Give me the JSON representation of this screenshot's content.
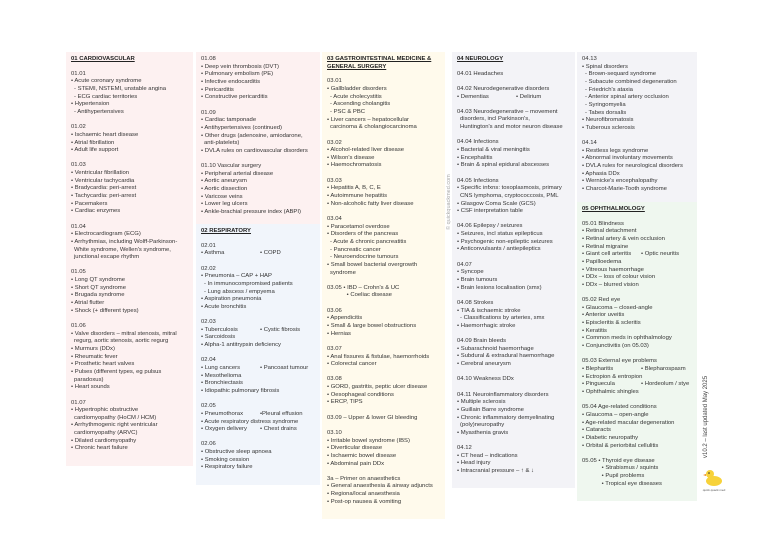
{
  "colors": {
    "cardio": "#fdf1f1",
    "resp": "#f1f5fb",
    "gastro": "#fffaec",
    "neuro": "#f3f3f7",
    "ophth": "#eff7ef"
  },
  "boxes": [
    {
      "id": "cardio",
      "heading": "01 CARDIOVASCULAR",
      "groups": [
        {
          "lines": [
            "01.01",
            "• Acute coronary syndrome",
            "- STEMI, NSTEMI, unstable angina",
            "- ECG cardiac territories",
            "• Hypertension",
            "- Antihypertensives"
          ]
        },
        {
          "lines": [
            "01.02",
            "• Ischaemic heart disease",
            "• Atrial fibrillation",
            "• Adult life support"
          ]
        },
        {
          "lines": [
            "01.03",
            "• Ventricular fibrillation",
            "• Ventricular tachycardia",
            "• Bradycardia: peri-arrest",
            "• Tachycardia: peri-arrest",
            "• Pacemakers",
            "• Cardiac enzymes"
          ]
        },
        {
          "lines": [
            "01.04",
            "• Electrocardiogram (ECG)",
            "• Arrhythmias, including Wolff-Parkinson-",
            "~White syndrome, Wellen's syndrome,",
            "~junctional escape rhythm"
          ]
        },
        {
          "lines": [
            "01.05",
            "• Long QT syndrome",
            "• Short QT syndrome",
            "• Brugada syndrome",
            "• Atrial flutter",
            "• Shock (+ different types)"
          ]
        },
        {
          "lines": [
            "01.06",
            "• Valve disorders – mitral stenosis, mitral",
            "~regurg, aortic stenosis, aortic regurg",
            "• Murmurs (DDx)",
            "• Rheumatic fever",
            "• Prosthetic heart valves",
            "• Pulses (different types, eg pulsus",
            "~paradoxus)",
            "• Heart sounds"
          ]
        },
        {
          "lines": [
            "01.07",
            "• Hypertrophic obstructive",
            "~cardiomyopathy (HoCM / HCM)",
            "• Arrhythmogenic right ventricular",
            "~cardiomyopathy (ARVC)",
            "• Dilated cardiomyopathy",
            "• Chronic heart failure"
          ]
        }
      ]
    },
    {
      "id": "cardio2",
      "heading": "",
      "groups": [
        {
          "lines": [
            "01.08",
            "• Deep vein thrombosis (DVT)",
            "• Pulmonary embolism (PE)",
            "• Infective endocarditis",
            "• Pericarditis",
            "• Constructive pericarditis"
          ]
        },
        {
          "lines": [
            "01.09",
            "• Cardiac tamponade",
            "• Antihypertensives (continued)",
            "• Other drugs (adenosine, amiodarone,",
            "~anti-platelets)",
            "• DVLA rules on cardiovascular disorders"
          ]
        },
        {
          "lines": [
            "01.10 Vascular surgery",
            "• Peripheral arterial disease",
            "• Aortic aneurysm",
            "• Aortic dissection",
            "• Varicose veins",
            "• Lower leg ulcers",
            "• Ankle-brachial pressure index (ABPI)"
          ]
        }
      ]
    },
    {
      "id": "resp",
      "heading": "02 RESPIRATORY",
      "groups": [
        {
          "lines": [
            "02.01",
            [
              "• Asthma",
              "• COPD"
            ]
          ]
        },
        {
          "lines": [
            "02.02",
            "• Pneumonia – CAP + HAP",
            "- In immunocompromised patients",
            "- Lung abscess / empyema",
            "• Aspiration pneumonia",
            "• Acute bronchitis"
          ]
        },
        {
          "lines": [
            "02.03",
            [
              "• Tuberculosis",
              "• Cystic fibrosis"
            ],
            "• Sarcoidosis",
            "• Alpha-1 antitrypsin deficiency"
          ]
        },
        {
          "lines": [
            "02.04",
            [
              "• Lung cancers",
              "• Pancoast tumour"
            ],
            "• Mesothelioma",
            "• Bronchiectasis",
            "• Idiopathic pulmonary fibrosis"
          ]
        },
        {
          "lines": [
            "02.05",
            [
              "• Pneumothorax",
              "•Pleural effusion"
            ],
            "• Acute respiratory distress syndrome",
            [
              "• Oxygen delivery",
              "• Chest drains"
            ]
          ]
        },
        {
          "lines": [
            "02.06",
            "• Obstructive sleep apnoea",
            "• Smoking cession",
            "• Respiratory failure"
          ]
        }
      ]
    },
    {
      "id": "gastro",
      "heading": "03 GASTROINTESTINAL MEDICINE & GENERAL SURGERY",
      "groups": [
        {
          "lines": [
            "03.01",
            "• Gallbladder disorders",
            "- Acute cholecystitis",
            "- Ascending cholangitis",
            "- PSC & PBC",
            "• Liver cancers – hepatocellular",
            "~carcinoma & cholangiocarcinoma"
          ]
        },
        {
          "lines": [
            "03.02",
            "• Alcohol-related liver disease",
            "• Wilson's disease",
            "• Haemochromatosis"
          ]
        },
        {
          "lines": [
            "03.03",
            "• Hepatitis A, B, C, E",
            "• Autoimmune hepatitis",
            "• Non-alcoholic fatty liver disease"
          ]
        },
        {
          "lines": [
            "03.04",
            "• Paracetamol overdose",
            "• Disorders of the pancreas",
            "- Acute & chronic pancreatitis",
            "- Pancreatic cancer",
            "- Neuroendocrine tumours",
            "• Small bowel bacterial overgrowth",
            "~syndrome"
          ]
        },
        {
          "lines": [
            "03.05 • IBD – Crohn's & UC",
            "            • Coeliac disease"
          ]
        },
        {
          "lines": [
            "03.06",
            "• Appendicitis",
            "• Small & large bowel obstructions",
            "• Hernias"
          ]
        },
        {
          "lines": [
            "03.07",
            "• Anal fissures & fistulae, haemorrhoids",
            "• Colorectal cancer"
          ]
        },
        {
          "lines": [
            "03.08",
            "• GORD, gastritis, peptic ulcer disease",
            "• Oesophageal conditions",
            "• ERCP, TIPS"
          ]
        },
        {
          "lines": [
            "03.09 – Upper & lower GI bleeding"
          ]
        },
        {
          "lines": [
            "03.10",
            "• Irritable bowel syndrome (IBS)",
            "• Diverticular disease",
            "• Ischaemic bowel disease",
            "• Abdominal pain DDx"
          ]
        },
        {
          "lines": [
            "3a – Primer on anaesthetics",
            "• General anaesthesia & airway adjuncts",
            "• Regiona/local anaesthesia",
            "• Post-op nausea & vomiting"
          ]
        }
      ]
    },
    {
      "id": "neuro",
      "heading": "04 NEUROLOGY",
      "groups": [
        {
          "lines": [
            "04.01 Headaches"
          ]
        },
        {
          "lines": [
            "04.02 Neurodegenerative disorders",
            [
              "• Dementias",
              "• Delirium"
            ]
          ]
        },
        {
          "lines": [
            "04.03 Neurodegenerative – movement",
            "~disorders, incl Parkinson's,",
            "~Huntington's and motor neuron disease"
          ]
        },
        {
          "lines": [
            "04.04 Infections",
            "• Bacterial & viral meningitis",
            "• Encephalitis",
            "• Brain & spinal epidural abscesses"
          ]
        },
        {
          "lines": [
            "04.05 Infections",
            "• Specific infxns: toxoplasmosis, primary",
            "~CNS lymphoma, cryptococcosis, PML",
            "• Glasgow Coma Scale (GCS)",
            "• CSF interpretation table"
          ]
        },
        {
          "lines": [
            "04.06 Epilepsy / seizures",
            "• Seizures, incl status epilepticus",
            "• Psychogenic non-epileptic seizures",
            "• Anticonvulsants / antiepileptics"
          ]
        },
        {
          "lines": [
            "04.07",
            "• Syncope",
            "• Brain tumours",
            "• Brain lesions localisation (smx)"
          ]
        },
        {
          "lines": [
            "04.08 Strokes",
            "• TIA & ischaemic stroke",
            "- Classifications by arteries, smx",
            "• Haemorrhagic stroke"
          ]
        },
        {
          "lines": [
            "04.09 Brain bleeds",
            "• Subarachnoid haemorrhage",
            "• Subdural & extradural haemorrhage",
            "• Cerebral aneurysm"
          ]
        },
        {
          "lines": [
            "04.10 Weakness DDx"
          ]
        },
        {
          "lines": [
            "04.11 Neuroinflammatory disorders",
            "• Multiple sclerosis",
            "• Guillain Barre syndrome",
            "• Chronic inflammatory demyelinating",
            "~(poly)neuropathy",
            "• Myasthenia gravis"
          ]
        },
        {
          "lines": [
            "04.12",
            "• CT head – indications",
            "• Head injury",
            "• Intracranial pressure – ↑ & ↓"
          ]
        }
      ]
    },
    {
      "id": "neuro2",
      "heading": "",
      "groups": [
        {
          "lines": [
            "04.13",
            "• Spinal disorders",
            "- Brown-sequard syndrome",
            "- Subacute combined degeneration",
            "- Friedrich's ataxia",
            "- Anterior spinal artery occlusion",
            "- Syringomyelia",
            "- Tabes dorsalis",
            "• Neurofibromatosis",
            "• Tuberous sclerosis"
          ]
        },
        {
          "lines": [
            "04.14",
            "• Restless legs syndrome",
            "• Abnormal involuntary movements",
            "• DVLA rules for neurological disorders",
            "• Aphasia DDx",
            "• Wernicke's encephalopathy",
            "• Charcot-Marie-Tooth syndrome"
          ]
        }
      ]
    },
    {
      "id": "ophth",
      "heading": "05 OPHTHALMOLOGY",
      "groups": [
        {
          "lines": [
            "05.01 Blindness",
            "• Retinal detachment",
            "• Retinal artery & vein occlusion",
            "• Retinal migraine",
            [
              "• Giant cell arteritis",
              "• Optic neuritis"
            ],
            "• Papilloedema",
            "• Vitreous haemorrhage",
            "• DDx – loss of colour vision",
            "• DDx – blurred vision"
          ]
        },
        {
          "lines": [
            "05.02 Red eye",
            "• Glaucoma – closed-angle",
            "• Anterior uveitis",
            "• Episcleritis & scleritis",
            "• Keratitis",
            "• Common meds in ophthalmology",
            "• Conjunctivitis (on 05.03)"
          ]
        },
        {
          "lines": [
            "05.03 External eye problems",
            [
              "• Blepharitis",
              "• Blepharospasm"
            ],
            "• Ectropion & entropion",
            [
              "• Pinguecula",
              "• Hordeolum / stye"
            ],
            "• Ophthalmic shingles"
          ]
        },
        {
          "lines": [
            "05.04 Age-related conditions",
            "• Glaucoma – open-angle",
            "• Age-related macular degeneration",
            "• Cataracts",
            "• Diabetic neuropathy",
            "• Orbital & periorbital cellulitis"
          ]
        },
        {
          "lines": [
            "05.05 • Thyroid eye disease",
            "            • Strabismus / squints",
            "            • Pupil problems",
            "            • Tropical eye diseases"
          ]
        }
      ]
    }
  ],
  "watermark": "© quickquackmed.com",
  "version": "v10.2 – last updated May 2025",
  "logo_text": "quick quack med",
  "icons": {
    "logo": "duck-logo-icon"
  }
}
